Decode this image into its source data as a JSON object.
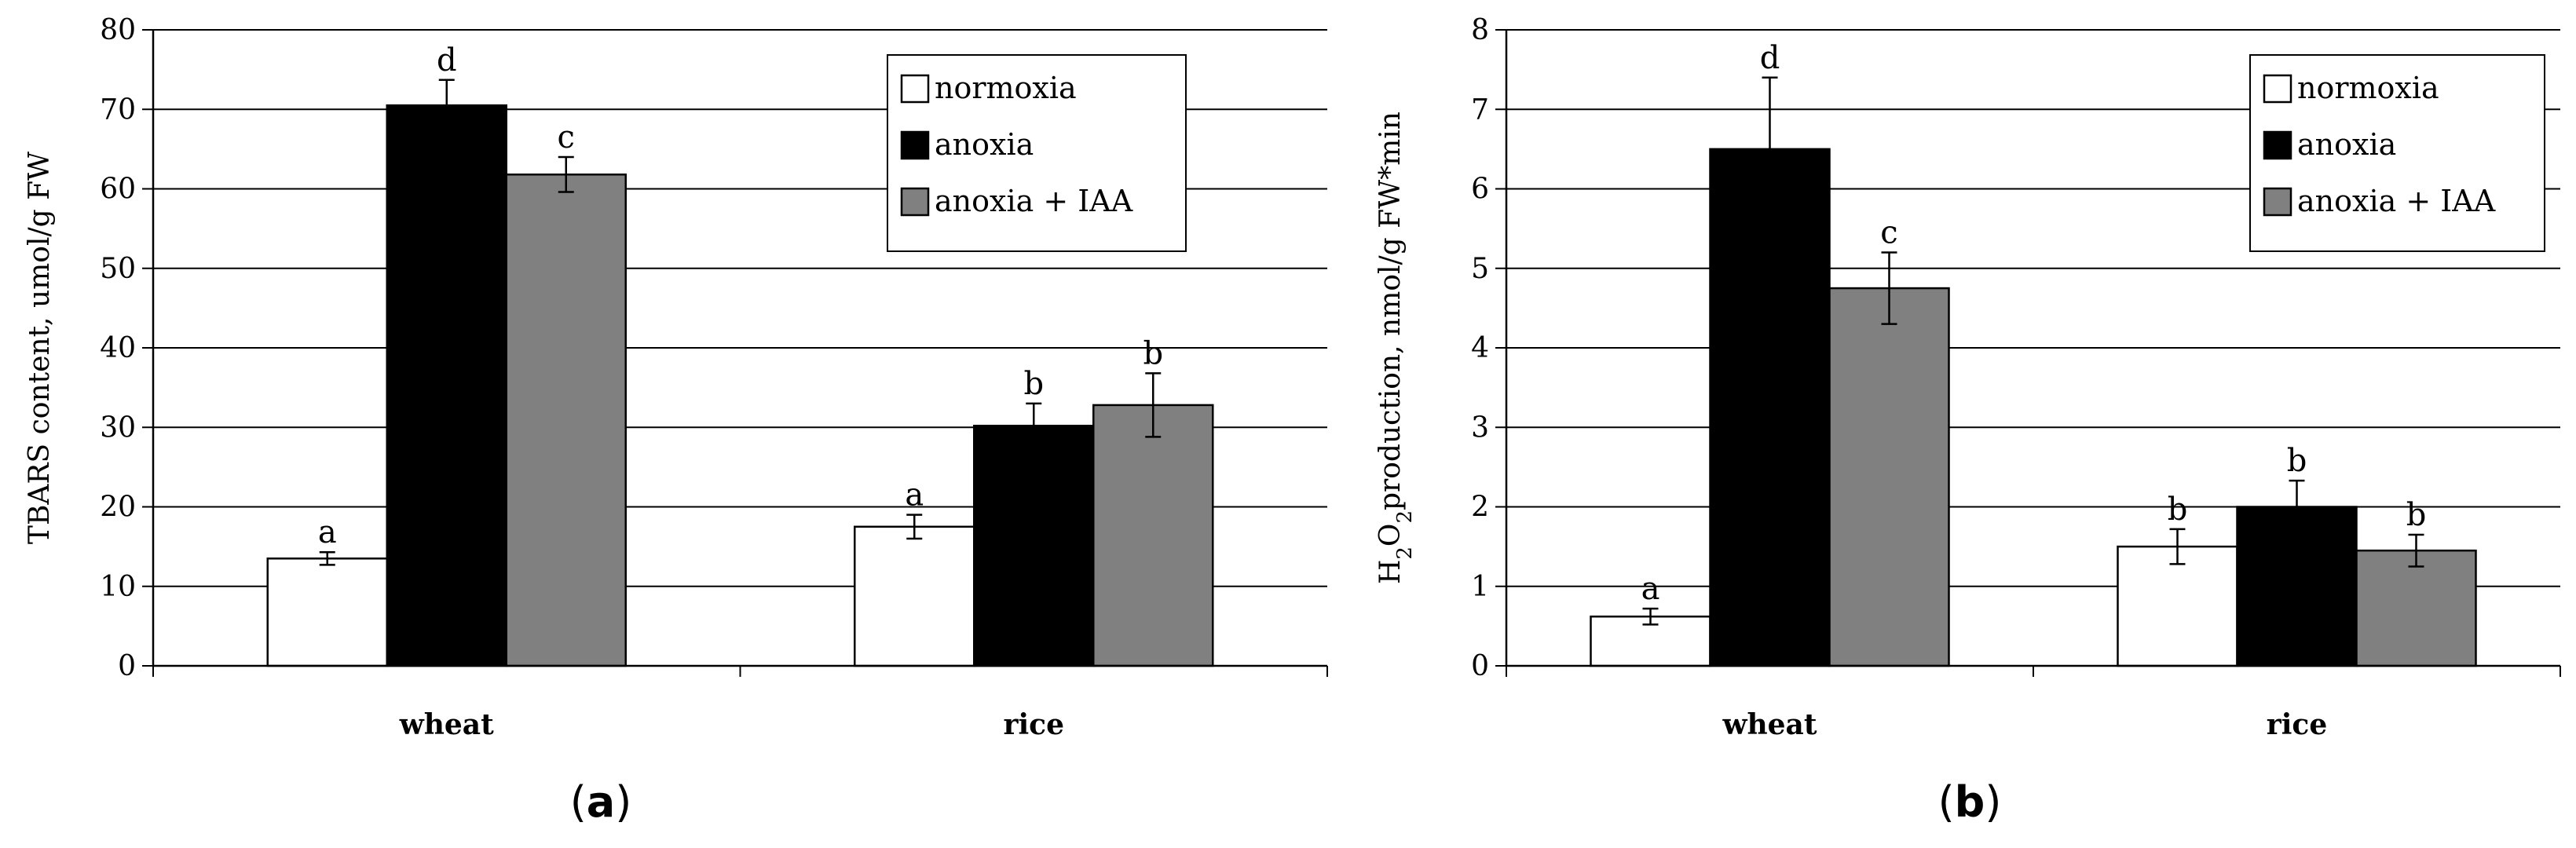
{
  "chart_data": [
    {
      "type": "bar",
      "panel_label": "a",
      "title": "",
      "ylabel": "TBARS content, umol/g FW",
      "ylabel_parts": [
        {
          "text": "TBARS content, umol/g FW",
          "sub": false
        }
      ],
      "xlabel": "",
      "ylim": [
        0,
        80
      ],
      "yticks": [
        0,
        10,
        20,
        30,
        40,
        50,
        60,
        70,
        80
      ],
      "grid": true,
      "legend_position": "top-right",
      "categories": [
        "wheat",
        "rice"
      ],
      "series": [
        {
          "name": "normoxia",
          "color": "#ffffff",
          "values": [
            13.5,
            17.5
          ],
          "errors": [
            0.8,
            1.5
          ],
          "labels": [
            "a",
            "a"
          ]
        },
        {
          "name": "anoxia",
          "color": "#000000",
          "values": [
            70.5,
            30.2
          ],
          "errors": [
            3.2,
            2.8
          ],
          "labels": [
            "d",
            "b"
          ]
        },
        {
          "name": "anoxia + IAA",
          "color": "#808080",
          "values": [
            61.8,
            32.8
          ],
          "errors": [
            2.2,
            4.0
          ],
          "labels": [
            "c",
            "b"
          ]
        }
      ]
    },
    {
      "type": "bar",
      "panel_label": "b",
      "title": "",
      "ylabel": "H2O2 production, nmol/g FW*min",
      "ylabel_parts": [
        {
          "text": "H",
          "sub": false
        },
        {
          "text": "2",
          "sub": true
        },
        {
          "text": "O",
          "sub": false
        },
        {
          "text": "2",
          "sub": true
        },
        {
          "text": "production, nmol/g FW*min",
          "sub": false
        }
      ],
      "xlabel": "",
      "ylim": [
        0,
        8
      ],
      "yticks": [
        0,
        1,
        2,
        3,
        4,
        5,
        6,
        7,
        8
      ],
      "grid": true,
      "legend_position": "top-right",
      "categories": [
        "wheat",
        "rice"
      ],
      "series": [
        {
          "name": "normoxia",
          "color": "#ffffff",
          "values": [
            0.62,
            1.5
          ],
          "errors": [
            0.1,
            0.22
          ],
          "labels": [
            "a",
            "b"
          ]
        },
        {
          "name": "anoxia",
          "color": "#000000",
          "values": [
            6.5,
            2.0
          ],
          "errors": [
            0.9,
            0.33
          ],
          "labels": [
            "d",
            "b"
          ]
        },
        {
          "name": "anoxia + IAA",
          "color": "#808080",
          "values": [
            4.75,
            1.45
          ],
          "errors": [
            0.45,
            0.2
          ],
          "labels": [
            "c",
            "b"
          ]
        }
      ]
    }
  ]
}
